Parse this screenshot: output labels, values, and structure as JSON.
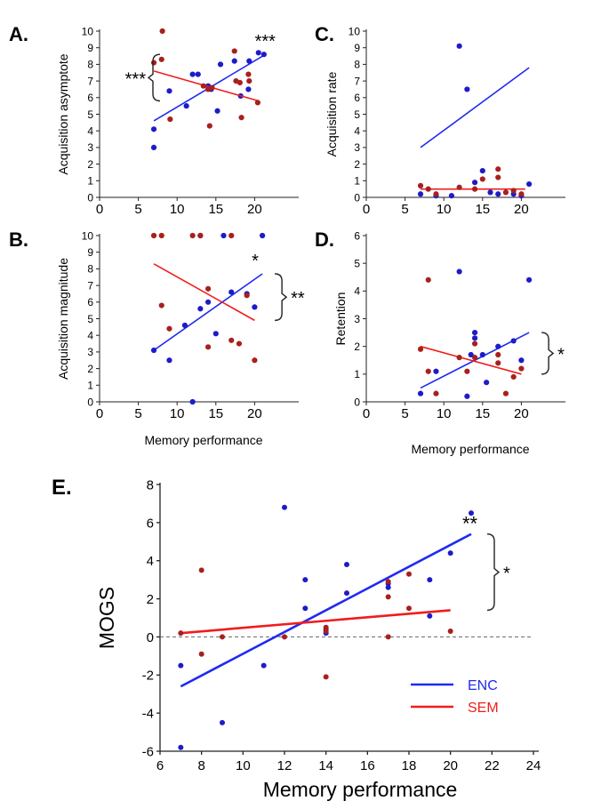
{
  "figure": {
    "colors": {
      "ENC": "#1c1cc8",
      "SEM": "#a8201c",
      "ENC_line": "#1f2bf0",
      "SEM_line": "#f01c1c"
    }
  },
  "chart_data": [
    {
      "panel": "A.",
      "type": "scatter",
      "xlabel": "",
      "ylabel": "Acquisition asymptote",
      "xlim": [
        0,
        25
      ],
      "ylim": [
        0,
        10
      ],
      "xticks": [
        0,
        5,
        10,
        15,
        20
      ],
      "yticks": [
        0,
        1,
        2,
        3,
        4,
        5,
        6,
        7,
        8,
        9,
        10
      ],
      "series": [
        {
          "name": "ENC",
          "points": [
            [
              7,
              3
            ],
            [
              7,
              4.1
            ],
            [
              9,
              6.4
            ],
            [
              11.2,
              5.5
            ],
            [
              12,
              7.4
            ],
            [
              12.7,
              7.4
            ],
            [
              14,
              6.7
            ],
            [
              14.4,
              6.5
            ],
            [
              15.2,
              5.2
            ],
            [
              15.6,
              8.0
            ],
            [
              17.4,
              8.2
            ],
            [
              18.2,
              6.1
            ],
            [
              19.2,
              6.5
            ],
            [
              19.3,
              8.2
            ],
            [
              20.5,
              8.7
            ],
            [
              21.2,
              8.6
            ]
          ],
          "fit": [
            [
              7,
              4.6
            ],
            [
              21.4,
              8.6
            ]
          ]
        },
        {
          "name": "SEM",
          "points": [
            [
              7,
              8.1
            ],
            [
              8,
              8.3
            ],
            [
              8.1,
              10
            ],
            [
              9.1,
              4.7
            ],
            [
              13.4,
              6.7
            ],
            [
              14,
              6.5
            ],
            [
              14.5,
              6.6
            ],
            [
              14.2,
              4.3
            ],
            [
              17.4,
              8.8
            ],
            [
              17.6,
              7.0
            ],
            [
              18.1,
              6.9
            ],
            [
              18.3,
              4.8
            ],
            [
              19.3,
              7.0
            ],
            [
              19.2,
              7.4
            ],
            [
              20.4,
              5.7
            ]
          ],
          "fit": [
            [
              7,
              7.6
            ],
            [
              20.5,
              5.8
            ]
          ]
        }
      ],
      "annotations": [
        {
          "text": "***",
          "kind": "star"
        },
        {
          "text": "***",
          "kind": "bracket"
        }
      ]
    },
    {
      "panel": "B.",
      "type": "scatter",
      "xlabel": "Memory performance",
      "ylabel": "Acquisition magnitude",
      "xlim": [
        0,
        25
      ],
      "ylim": [
        0,
        10
      ],
      "xticks": [
        0,
        5,
        10,
        15,
        20
      ],
      "yticks": [
        0,
        1,
        2,
        3,
        4,
        5,
        6,
        7,
        8,
        9,
        10
      ],
      "series": [
        {
          "name": "ENC",
          "points": [
            [
              7,
              3.1
            ],
            [
              9,
              2.5
            ],
            [
              11,
              4.6
            ],
            [
              12,
              0
            ],
            [
              13,
              10
            ],
            [
              13,
              5.6
            ],
            [
              14,
              6
            ],
            [
              15,
              4.1
            ],
            [
              16,
              10
            ],
            [
              17,
              6.6
            ],
            [
              19,
              6.5
            ],
            [
              20,
              5.7
            ],
            [
              21,
              10
            ]
          ],
          "fit": [
            [
              7,
              3.1
            ],
            [
              21,
              7.7
            ]
          ]
        },
        {
          "name": "SEM",
          "points": [
            [
              7,
              10
            ],
            [
              8,
              10
            ],
            [
              8,
              5.8
            ],
            [
              9,
              4.4
            ],
            [
              12,
              10
            ],
            [
              13,
              10
            ],
            [
              14,
              3.3
            ],
            [
              14,
              6.8
            ],
            [
              17,
              3.7
            ],
            [
              17,
              10
            ],
            [
              18,
              3.5
            ],
            [
              19,
              6.4
            ],
            [
              20,
              2.5
            ]
          ],
          "fit": [
            [
              7,
              8.3
            ],
            [
              20,
              4.9
            ]
          ]
        }
      ],
      "annotations": [
        {
          "text": "*",
          "kind": "star"
        },
        {
          "text": "**",
          "kind": "bracket"
        }
      ]
    },
    {
      "panel": "C.",
      "type": "scatter",
      "xlabel": "",
      "ylabel": "Acquisition rate",
      "xlim": [
        0,
        25
      ],
      "ylim": [
        0,
        10
      ],
      "xticks": [
        0,
        5,
        10,
        15,
        20
      ],
      "yticks": [
        0,
        1,
        2,
        3,
        4,
        5,
        6,
        7,
        8,
        9,
        10
      ],
      "series": [
        {
          "name": "ENC",
          "points": [
            [
              7,
              0.2
            ],
            [
              9,
              0.1
            ],
            [
              11,
              0.1
            ],
            [
              12,
              9.1
            ],
            [
              13,
              6.5
            ],
            [
              14,
              0.9
            ],
            [
              15,
              1.6
            ],
            [
              16,
              0.3
            ],
            [
              17,
              0.2
            ],
            [
              19,
              0.2
            ],
            [
              20,
              0.1
            ],
            [
              21,
              0.8
            ]
          ],
          "fit": [
            [
              7,
              3.0
            ],
            [
              21,
              7.8
            ]
          ]
        },
        {
          "name": "SEM",
          "points": [
            [
              7,
              0.7
            ],
            [
              8,
              0.5
            ],
            [
              9,
              0.2
            ],
            [
              12,
              0.6
            ],
            [
              14,
              0.5
            ],
            [
              15,
              1.1
            ],
            [
              17,
              1.7
            ],
            [
              17,
              1.2
            ],
            [
              18,
              0.3
            ],
            [
              19,
              0.4
            ],
            [
              20,
              0.2
            ]
          ],
          "fit": [
            [
              7,
              0.5
            ],
            [
              20.5,
              0.5
            ]
          ]
        }
      ],
      "annotations": []
    },
    {
      "panel": "D.",
      "type": "scatter",
      "xlabel": "Memory performance",
      "ylabel": "Retention",
      "xlim": [
        0,
        25
      ],
      "ylim": [
        0,
        6
      ],
      "xticks": [
        0,
        5,
        10,
        15,
        20
      ],
      "yticks": [
        0,
        1,
        2,
        3,
        4,
        5,
        6
      ],
      "series": [
        {
          "name": "ENC",
          "points": [
            [
              7,
              0.3
            ],
            [
              9,
              1.1
            ],
            [
              12,
              4.7
            ],
            [
              13,
              0.2
            ],
            [
              13.5,
              1.7
            ],
            [
              14,
              2.5
            ],
            [
              14,
              2.3
            ],
            [
              15,
              1.7
            ],
            [
              15.5,
              0.7
            ],
            [
              17,
              2
            ],
            [
              19,
              2.2
            ],
            [
              20,
              1.5
            ],
            [
              21,
              4.4
            ]
          ],
          "fit": [
            [
              7,
              0.5
            ],
            [
              21,
              2.5
            ]
          ]
        },
        {
          "name": "SEM",
          "points": [
            [
              7,
              1.9
            ],
            [
              8,
              4.4
            ],
            [
              8,
              1.1
            ],
            [
              9,
              0.3
            ],
            [
              12,
              1.6
            ],
            [
              13,
              1.1
            ],
            [
              14,
              1.6
            ],
            [
              14,
              2.1
            ],
            [
              17,
              1.7
            ],
            [
              17,
              1.4
            ],
            [
              18,
              0.3
            ],
            [
              19,
              0.9
            ],
            [
              20,
              1.2
            ]
          ],
          "fit": [
            [
              7,
              2.0
            ],
            [
              20,
              1.0
            ]
          ]
        }
      ],
      "annotations": [
        {
          "text": "*",
          "kind": "bracket"
        }
      ]
    },
    {
      "panel": "E.",
      "type": "scatter",
      "xlabel": "Memory performance",
      "ylabel": "MOGS",
      "xlim": [
        6,
        24
      ],
      "ylim": [
        -6,
        8
      ],
      "xticks": [
        6,
        8,
        10,
        12,
        14,
        16,
        18,
        20,
        22,
        24
      ],
      "yticks": [
        -6,
        -4,
        -2,
        0,
        2,
        4,
        6,
        8
      ],
      "reference_line": 0,
      "series": [
        {
          "name": "ENC",
          "points": [
            [
              7,
              -1.5
            ],
            [
              7,
              -5.8
            ],
            [
              9,
              -4.5
            ],
            [
              11,
              -1.5
            ],
            [
              12,
              6.8
            ],
            [
              13,
              3.0
            ],
            [
              13,
              1.5
            ],
            [
              14,
              0.4
            ],
            [
              14,
              0.2
            ],
            [
              15,
              3.8
            ],
            [
              15,
              2.3
            ],
            [
              17,
              2.6
            ],
            [
              17,
              2.8
            ],
            [
              19,
              3.0
            ],
            [
              19,
              1.1
            ],
            [
              20,
              4.4
            ],
            [
              21,
              6.5
            ]
          ],
          "fit": [
            [
              7,
              -2.6
            ],
            [
              21,
              5.4
            ]
          ]
        },
        {
          "name": "SEM",
          "points": [
            [
              7,
              0.2
            ],
            [
              8,
              3.5
            ],
            [
              8,
              -0.9
            ],
            [
              9,
              0.0
            ],
            [
              12,
              0.0
            ],
            [
              14,
              0.5
            ],
            [
              14,
              0.3
            ],
            [
              14,
              -2.1
            ],
            [
              17,
              2.9
            ],
            [
              17,
              2.1
            ],
            [
              17,
              0.0
            ],
            [
              18,
              3.3
            ],
            [
              18,
              1.5
            ],
            [
              20,
              0.3
            ]
          ],
          "fit": [
            [
              7,
              0.2
            ],
            [
              20,
              1.4
            ]
          ]
        }
      ],
      "legend": {
        "placement": "lower-right",
        "entries": [
          "ENC",
          "SEM"
        ]
      },
      "annotations": [
        {
          "text": "**",
          "kind": "star"
        },
        {
          "text": "*",
          "kind": "bracket"
        }
      ]
    }
  ]
}
